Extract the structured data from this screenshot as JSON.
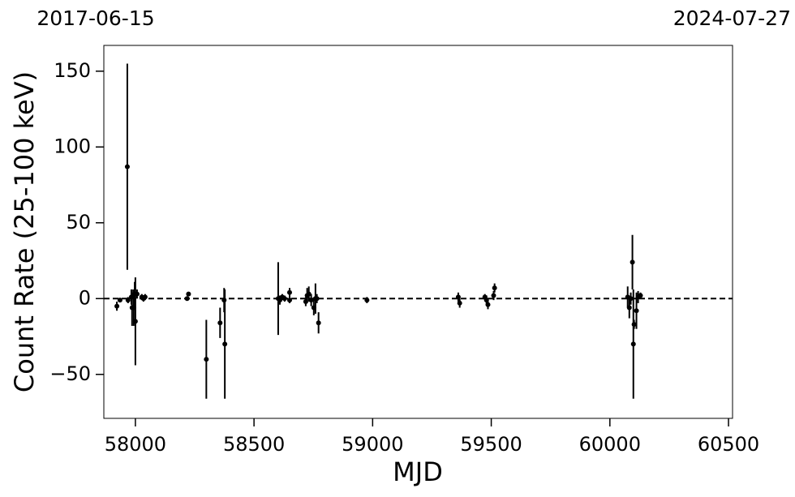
{
  "chart_data": {
    "type": "errorbar",
    "top_labels": [
      "2017-06-15",
      "2024-07-27"
    ],
    "xlabel": "MJD",
    "ylabel": "Count Rate (25-100 keV)",
    "xlim": [
      57867,
      60517
    ],
    "ylim": [
      -79,
      167
    ],
    "xticks": [
      58000,
      58500,
      59000,
      59500,
      60000,
      60500
    ],
    "yticks": [
      {
        "value": -50,
        "label": "−50"
      },
      0,
      50,
      100,
      150
    ],
    "reference_line": {
      "y": 0,
      "style": "dashed",
      "color": "#000000"
    },
    "series": [
      {
        "color": "#000000",
        "x": [
          57922,
          57935,
          57966,
          57969,
          57983,
          57986,
          57993,
          57997,
          58000,
          58007,
          58027,
          58034,
          58041,
          58218,
          58224,
          58299,
          58357,
          58374,
          58377,
          58602,
          58609,
          58619,
          58629,
          58650,
          58650,
          58718,
          58724,
          58731,
          58741,
          58752,
          58759,
          58765,
          58772,
          58976,
          59361,
          59367,
          59473,
          59480,
          59486,
          59510,
          59514,
          60075,
          60082,
          60088,
          60095,
          60099,
          60102,
          60112,
          60119,
          60129
        ],
        "values": [
          -5,
          -1,
          87,
          -1,
          1,
          -6,
          -6,
          3,
          -15,
          3,
          1,
          0,
          1,
          0,
          3,
          -40,
          -16,
          -1,
          -30,
          0,
          -1,
          1,
          0,
          4,
          -1,
          -2,
          2,
          3,
          -1,
          -6,
          0,
          0,
          -16,
          -1,
          1,
          -3,
          1,
          -1,
          -4,
          2,
          7,
          1,
          -6,
          0,
          24,
          -30,
          -17,
          -8,
          1,
          2
        ],
        "errors": [
          3,
          1,
          68,
          2,
          5,
          12,
          12,
          8,
          29,
          3,
          2,
          2,
          2,
          1,
          1,
          26,
          10,
          8,
          36,
          24,
          3,
          2,
          2,
          3,
          2,
          3,
          5,
          5,
          4,
          5,
          10,
          3,
          7,
          2,
          3,
          3,
          2,
          3,
          3,
          3,
          3,
          7,
          7,
          4,
          18,
          36,
          3,
          12,
          4,
          2
        ]
      }
    ]
  }
}
